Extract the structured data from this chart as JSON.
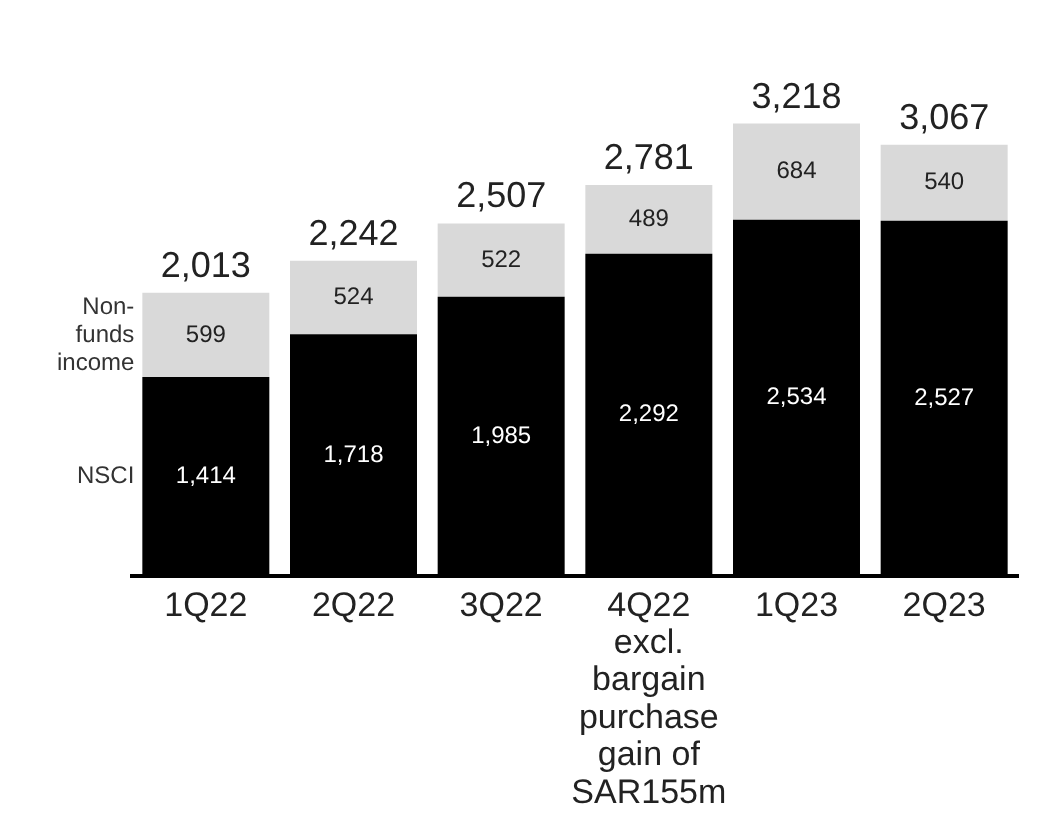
{
  "chart_data": {
    "type": "bar",
    "stacked": true,
    "categories": [
      "1Q22",
      "2Q22",
      "3Q22",
      "4Q22\nexcl.\nbargain\npurchase\ngain of\nSAR155m",
      "1Q23",
      "2Q23"
    ],
    "series": [
      {
        "name": "NSCI",
        "color": "#000000",
        "values": [
          1414,
          1718,
          1985,
          2292,
          2534,
          2527
        ],
        "value_labels": [
          "1,414",
          "1,718",
          "1,985",
          "2,292",
          "2,534",
          "2,527"
        ]
      },
      {
        "name": "Non-\nfunds\nincome",
        "color": "#d9d9d9",
        "values": [
          599,
          524,
          522,
          489,
          684,
          540
        ],
        "value_labels": [
          "599",
          "524",
          "522",
          "489",
          "684",
          "540"
        ]
      }
    ],
    "totals": [
      "2,013",
      "2,242",
      "2,507",
      "2,781",
      "3,218",
      "3,067"
    ],
    "legend": false,
    "grid": false,
    "tick_labels": "x"
  }
}
